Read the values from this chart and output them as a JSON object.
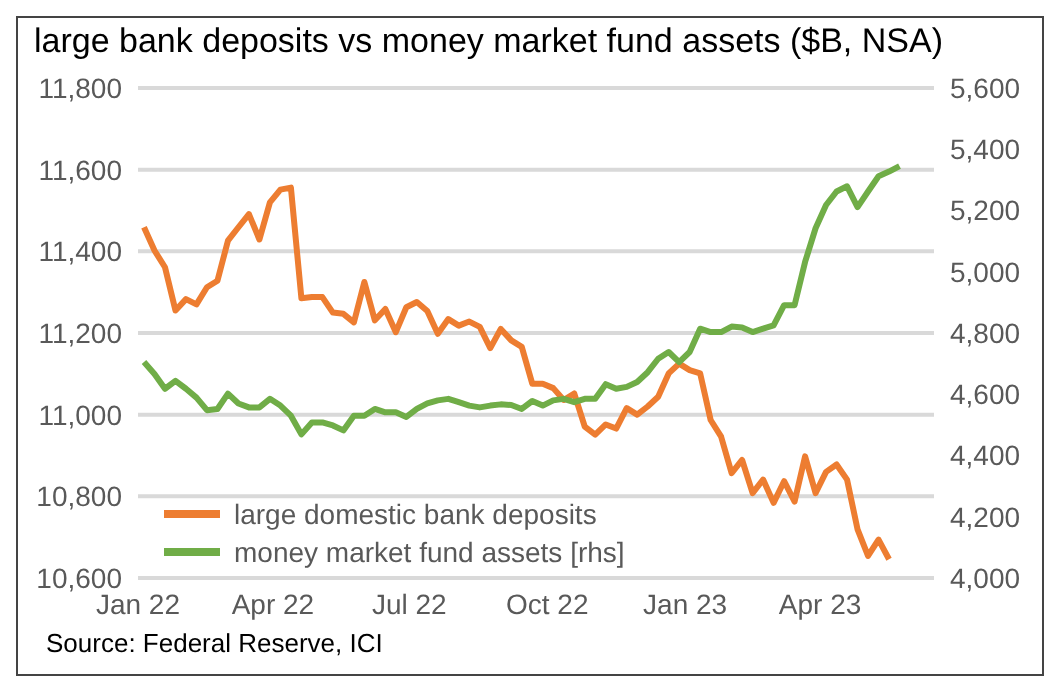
{
  "chart_data": {
    "type": "line",
    "title": "large bank deposits vs money market fund assets ($B, NSA)",
    "x": [
      "2022-01-05",
      "2022-01-12",
      "2022-01-19",
      "2022-01-26",
      "2022-02-02",
      "2022-02-09",
      "2022-02-16",
      "2022-02-23",
      "2022-03-02",
      "2022-03-09",
      "2022-03-16",
      "2022-03-23",
      "2022-03-30",
      "2022-04-06",
      "2022-04-13",
      "2022-04-20",
      "2022-04-27",
      "2022-05-04",
      "2022-05-11",
      "2022-05-18",
      "2022-05-25",
      "2022-06-01",
      "2022-06-08",
      "2022-06-15",
      "2022-06-22",
      "2022-06-29",
      "2022-07-06",
      "2022-07-13",
      "2022-07-20",
      "2022-07-27",
      "2022-08-03",
      "2022-08-10",
      "2022-08-17",
      "2022-08-24",
      "2022-08-31",
      "2022-09-07",
      "2022-09-14",
      "2022-09-21",
      "2022-09-28",
      "2022-10-05",
      "2022-10-12",
      "2022-10-19",
      "2022-10-26",
      "2022-11-02",
      "2022-11-09",
      "2022-11-16",
      "2022-11-23",
      "2022-11-30",
      "2022-12-07",
      "2022-12-14",
      "2022-12-21",
      "2022-12-28",
      "2023-01-04",
      "2023-01-11",
      "2023-01-18",
      "2023-01-25",
      "2023-02-01",
      "2023-02-08",
      "2023-02-15",
      "2023-02-22",
      "2023-03-01",
      "2023-03-08",
      "2023-03-15",
      "2023-03-22",
      "2023-03-29",
      "2023-04-05",
      "2023-04-12",
      "2023-04-19",
      "2023-04-26",
      "2023-05-03",
      "2023-05-10",
      "2023-05-17",
      "2023-05-24"
    ],
    "series": [
      {
        "name": "large domestic bank deposits",
        "color": "#ed7d31",
        "values": [
          11459,
          11402,
          11361,
          11255,
          11283,
          11270,
          11312,
          11328,
          11426,
          11459,
          11491,
          11429,
          11520,
          11551,
          11556,
          11285,
          11288,
          11288,
          11250,
          11247,
          11226,
          11325,
          11231,
          11259,
          11202,
          11263,
          11276,
          11254,
          11198,
          11234,
          11218,
          11228,
          11215,
          11163,
          11210,
          11182,
          11166,
          11076,
          11076,
          11065,
          11036,
          11052,
          10971,
          10951,
          10976,
          10966,
          11016,
          11000,
          11020,
          11044,
          11101,
          11125,
          11109,
          11101,
          10987,
          10946,
          10857,
          10889,
          10808,
          10841,
          10784,
          10837,
          10787,
          10898,
          10808,
          10860,
          10878,
          10841,
          10719,
          10654,
          10694,
          10646,
          null
        ]
      },
      {
        "name": "money market fund assets [rhs]",
        "color": "#70ad47",
        "axis": "y2",
        "values": [
          4705,
          4666,
          4618,
          4644,
          4618,
          4589,
          4548,
          4552,
          4602,
          4570,
          4557,
          4557,
          4585,
          4563,
          4530,
          4469,
          4508,
          4508,
          4498,
          4482,
          4530,
          4530,
          4552,
          4541,
          4541,
          4526,
          4552,
          4570,
          4580,
          4585,
          4574,
          4563,
          4557,
          4563,
          4567,
          4565,
          4552,
          4578,
          4563,
          4580,
          4585,
          4574,
          4585,
          4585,
          4633,
          4618,
          4624,
          4640,
          4672,
          4716,
          4738,
          4705,
          4738,
          4814,
          4803,
          4803,
          4821,
          4818,
          4803,
          4814,
          4825,
          4891,
          4891,
          5032,
          5142,
          5218,
          5262,
          5279,
          5211,
          5262,
          5312,
          5327,
          5345
        ]
      }
    ],
    "xlim": [
      "2022-01-01",
      "2023-06-16"
    ],
    "xticks": [
      {
        "value": "2022-01-01",
        "label": "Jan 22"
      },
      {
        "value": "2022-04-01",
        "label": "Apr 22"
      },
      {
        "value": "2022-07-01",
        "label": "Jul 22"
      },
      {
        "value": "2022-10-01",
        "label": "Oct 22"
      },
      {
        "value": "2023-01-01",
        "label": "Jan 23"
      },
      {
        "value": "2023-04-01",
        "label": "Apr 23"
      }
    ],
    "ylim": [
      10600,
      11800
    ],
    "yticks": [
      {
        "value": 10600,
        "label": "10,600"
      },
      {
        "value": 10800,
        "label": "10,800"
      },
      {
        "value": 11000,
        "label": "11,000"
      },
      {
        "value": 11200,
        "label": "11,200"
      },
      {
        "value": 11400,
        "label": "11,400"
      },
      {
        "value": 11600,
        "label": "11,600"
      },
      {
        "value": 11800,
        "label": "11,800"
      }
    ],
    "y2lim": [
      4000,
      5600
    ],
    "y2ticks": [
      {
        "value": 4000,
        "label": "4,000"
      },
      {
        "value": 4200,
        "label": "4,200"
      },
      {
        "value": 4400,
        "label": "4,400"
      },
      {
        "value": 4600,
        "label": "4,600"
      },
      {
        "value": 4800,
        "label": "4,800"
      },
      {
        "value": 5000,
        "label": "5,000"
      },
      {
        "value": 5200,
        "label": "5,200"
      },
      {
        "value": 5400,
        "label": "5,400"
      },
      {
        "value": 5600,
        "label": "5,600"
      }
    ],
    "grid": "y",
    "legend": "bottom left",
    "marker": "none",
    "line_style": "solid",
    "annotations": [
      "Source: Federal Reserve, ICI"
    ]
  }
}
